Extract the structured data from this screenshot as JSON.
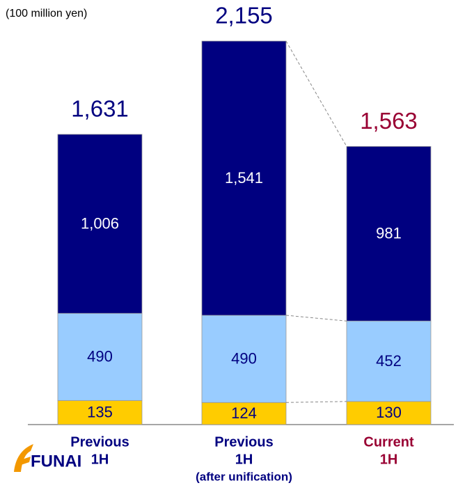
{
  "chart_data": {
    "type": "stacked_bar",
    "unit": "(100 million yen)",
    "logo": "FUNAI",
    "categories": [
      [
        "Previous",
        "1H"
      ],
      [
        "Previous",
        "1H",
        "(after unification)"
      ],
      [
        "Current",
        "1H"
      ]
    ],
    "category_colors": [
      "#000080",
      "#000080",
      "#990033"
    ],
    "series": [
      {
        "color": "#ffcc00",
        "text_color": "#000080",
        "values": [
          135,
          124,
          130
        ]
      },
      {
        "color": "#99ccff",
        "text_color": "#000080",
        "values": [
          490,
          490,
          452
        ]
      },
      {
        "color": "#000080",
        "text_color": "#ffffff",
        "values": [
          1006,
          1541,
          981
        ],
        "value_labels": [
          "1,006",
          "1,541",
          "981"
        ]
      }
    ],
    "totals": [
      1631,
      2155,
      1563
    ],
    "total_labels": [
      "1,631",
      "2,155",
      "1,563"
    ]
  }
}
